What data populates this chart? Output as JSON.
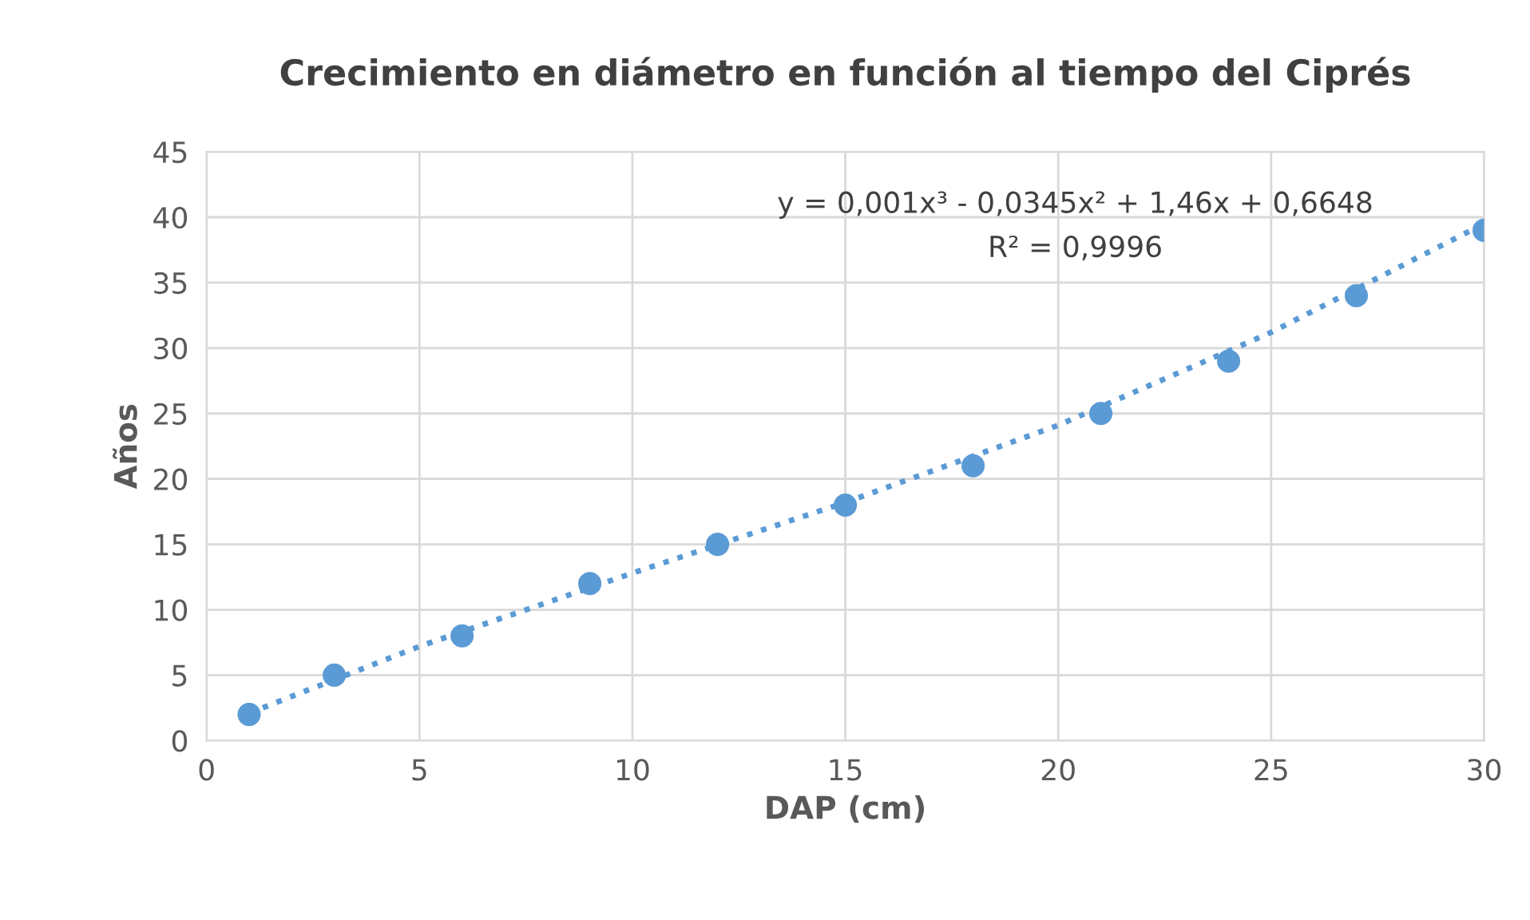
{
  "chart_data": {
    "type": "scatter",
    "title": "Crecimiento en diámetro en función al tiempo del Ciprés",
    "xlabel": "DAP (cm)",
    "ylabel": "Años",
    "series": [
      {
        "color": "#5b9bd5",
        "marker": "circle",
        "x": [
          1,
          3,
          6,
          9,
          12,
          15,
          18,
          21,
          24,
          27,
          30
        ],
        "values": [
          2,
          5,
          8,
          12,
          15,
          18,
          21,
          25,
          29,
          34,
          39
        ]
      },
      {
        "type": "line",
        "color": "#5b9bd5",
        "marker": "none",
        "line_style": "dotted",
        "x": [
          1,
          5,
          10,
          15,
          20,
          25,
          30
        ],
        "values": [
          2.1,
          7.2,
          12.8,
          18.2,
          24.1,
          31.2,
          39.5
        ]
      }
    ],
    "annotations": [
      "y = 0,001x³ - 0,0345x² + 1,46x + 0,6648",
      "R² = 0,9996"
    ],
    "xlim": [
      0,
      30
    ],
    "ylim": [
      0,
      45
    ],
    "xticks": [
      0,
      5,
      10,
      15,
      20,
      25,
      30
    ],
    "yticks": [
      0,
      5,
      10,
      15,
      20,
      25,
      30,
      35,
      40,
      45
    ],
    "grid": true
  }
}
